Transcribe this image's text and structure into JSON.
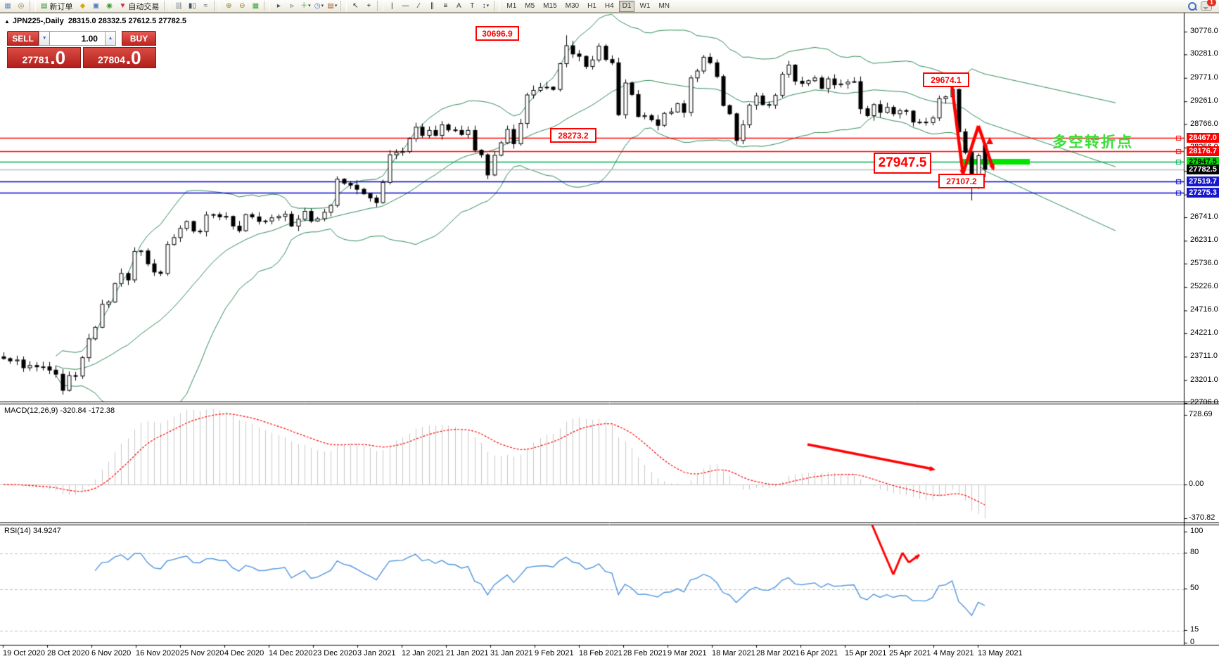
{
  "toolbar": {
    "items": [
      {
        "type": "icon",
        "name": "chart-window-icon",
        "glyph": "▦",
        "color": "#6b8fb5"
      },
      {
        "type": "icon",
        "name": "profile-search-icon",
        "glyph": "◎",
        "color": "#8a7a40"
      },
      {
        "type": "sep"
      },
      {
        "type": "button",
        "name": "new-order-button",
        "glyph": "▤",
        "color": "#3a8a3a",
        "label": "新订单"
      },
      {
        "type": "icon",
        "name": "style-brush-icon",
        "glyph": "◆",
        "color": "#dca900"
      },
      {
        "type": "icon",
        "name": "terminal-icon",
        "glyph": "▣",
        "color": "#5580c0"
      },
      {
        "type": "icon",
        "name": "news-signal-icon",
        "glyph": "◉",
        "color": "#30a030"
      },
      {
        "type": "button",
        "name": "autotrade-button",
        "glyph": "▼",
        "color": "#d03030",
        "label": "自动交易"
      },
      {
        "type": "sep"
      },
      {
        "type": "icon",
        "name": "bar-chart-icon",
        "glyph": "|||",
        "color": "#445566"
      },
      {
        "type": "icon",
        "name": "candle-chart-icon",
        "glyph": "▮▯",
        "color": "#445566"
      },
      {
        "type": "icon",
        "name": "line-chart-icon",
        "glyph": "≈",
        "color": "#445566"
      },
      {
        "type": "sep"
      },
      {
        "type": "icon",
        "name": "zoom-in-icon",
        "glyph": "⊕",
        "color": "#8a7a20"
      },
      {
        "type": "icon",
        "name": "zoom-out-icon",
        "glyph": "⊖",
        "color": "#8a7a20"
      },
      {
        "type": "icon",
        "name": "tile-windows-icon",
        "glyph": "▦",
        "color": "#3aa03a"
      },
      {
        "type": "sep"
      },
      {
        "type": "icon",
        "name": "auto-scroll-icon",
        "glyph": "▸",
        "color": "#445566"
      },
      {
        "type": "icon",
        "name": "chart-shift-icon",
        "glyph": "▹",
        "color": "#445566"
      },
      {
        "type": "button",
        "name": "indicators-button",
        "glyph": "＋",
        "color": "#2f9e2f",
        "caret": true
      },
      {
        "type": "button",
        "name": "periods-button",
        "glyph": "◷",
        "color": "#3b6fd4",
        "caret": true
      },
      {
        "type": "button",
        "name": "templates-button",
        "glyph": "▤",
        "color": "#b06030",
        "caret": true
      },
      {
        "type": "sep"
      },
      {
        "type": "icon",
        "name": "cursor-icon",
        "glyph": "↖",
        "color": "#222"
      },
      {
        "type": "icon",
        "name": "crosshair-icon",
        "glyph": "+",
        "color": "#222"
      },
      {
        "type": "sep"
      },
      {
        "type": "icon",
        "name": "vertical-line-icon",
        "glyph": "|",
        "color": "#222"
      },
      {
        "type": "icon",
        "name": "horizontal-line-icon",
        "glyph": "—",
        "color": "#222"
      },
      {
        "type": "icon",
        "name": "trendline-icon",
        "glyph": "∕",
        "color": "#222"
      },
      {
        "type": "icon",
        "name": "equidistant-channel-icon",
        "glyph": "∥",
        "color": "#222"
      },
      {
        "type": "icon",
        "name": "fibonacci-icon",
        "glyph": "≡",
        "color": "#222"
      },
      {
        "type": "icon",
        "name": "text-tool-icon",
        "glyph": "A",
        "color": "#444"
      },
      {
        "type": "icon",
        "name": "text-label-icon",
        "glyph": "T",
        "color": "#444"
      },
      {
        "type": "button",
        "name": "arrows-tool-button",
        "glyph": "↕",
        "color": "#445",
        "caret": true
      },
      {
        "type": "sep"
      }
    ],
    "timeframes": [
      "M1",
      "M5",
      "M15",
      "M30",
      "H1",
      "H4",
      "D1",
      "W1",
      "MN"
    ],
    "active_timeframe": "D1",
    "caret_glyph": "▾",
    "chat_badge": "1"
  },
  "title": {
    "collapse": "▲",
    "symbol": "JPN225-,Daily",
    "ohlc": "28315.0 28332.5 27612.5 27782.5"
  },
  "trade_panel": {
    "sell_label": "SELL",
    "buy_label": "BUY",
    "volume": "1.00",
    "spin_down": "▼",
    "spin_up": "▲",
    "sell_price": "27781",
    "sell_price_frac": ".0",
    "buy_price": "27804",
    "buy_price_frac": ".0"
  },
  "indicators": {
    "macd_label": "MACD(12,26,9) -320.84 -172.38",
    "rsi_label": "RSI(14) 34.9247"
  },
  "annotations": {
    "high_label": "30696.9",
    "swing_label": "29674.1",
    "support_label": "28273.2",
    "pivot_label": "27947.5",
    "low_label": "27107.2",
    "note_green": "多空转折点"
  },
  "axes": {
    "main_ticks": [
      30776.0,
      30281.0,
      29771.0,
      29261.0,
      28766.0,
      28256.0,
      27746.0,
      27236.0,
      26741.0,
      26231.0,
      25736.0,
      25226.0,
      24716.0,
      24221.0,
      23711.0,
      23201.0,
      22706.0
    ],
    "macd_ticks": [
      "728.69",
      "0.00",
      "-370.82"
    ],
    "rsi_ticks": [
      "100",
      "80",
      "50",
      "15",
      "0"
    ],
    "dates": [
      "19 Oct 2020",
      "28 Oct 2020",
      "6 Nov 2020",
      "16 Nov 2020",
      "25 Nov 2020",
      "4 Dec 2020",
      "14 Dec 2020",
      "23 Dec 2020",
      "3 Jan 2021",
      "12 Jan 2021",
      "21 Jan 2021",
      "31 Jan 2021",
      "9 Feb 2021",
      "18 Feb 2021",
      "28 Feb 2021",
      "9 Mar 2021",
      "18 Mar 2021",
      "28 Mar 2021",
      "6 Apr 2021",
      "15 Apr 2021",
      "25 Apr 2021",
      "4 May 2021",
      "13 May 2021"
    ]
  },
  "price_lines": [
    {
      "value": 28467.0,
      "label": "28467.0",
      "line": "#ff0000",
      "bg": "#ff0000",
      "fg": "#ffffff",
      "handle": true
    },
    {
      "value": 28176.7,
      "label": "28176.7",
      "line": "#ff0000",
      "bg": "#ff0000",
      "fg": "#ffffff",
      "handle": true
    },
    {
      "value": 27947.5,
      "label": "27947.5",
      "line": "#00b050",
      "bg": "#00df00",
      "fg": "#000000",
      "handle": true
    },
    {
      "value": 27782.5,
      "label": "27782.5",
      "line": "#bbbbbb",
      "bg": "#000000",
      "fg": "#ffffff",
      "handle": false
    },
    {
      "value": 27519.7,
      "label": "27519.7",
      "line": "#0000cc",
      "bg": "#1616cc",
      "fg": "#ffffff",
      "handle": true
    },
    {
      "value": 27275.3,
      "label": "27275.3",
      "line": "#0000cc",
      "bg": "#1616cc",
      "fg": "#ffffff",
      "handle": true
    }
  ],
  "chart_data": {
    "type": "candlestick",
    "symbol": "JPN225",
    "period": "Daily",
    "y_range": [
      22706,
      30776
    ],
    "macd_range": [
      -370.82,
      728.69
    ],
    "rsi_levels": [
      80,
      50,
      15
    ],
    "last_ohlc": {
      "open": 28315.0,
      "high": 28332.5,
      "low": 27612.5,
      "close": 27782.5
    },
    "key_points": {
      "high": 30696.9,
      "swing_high": 29674.1,
      "shelf": 28273.2,
      "pivot": 27947.5,
      "crash_low": 27107.2
    },
    "indicators": {
      "bollinger": {
        "period": 20,
        "deviation": 2
      },
      "macd": {
        "fast": 12,
        "slow": 26,
        "signal": 9,
        "current": -320.84,
        "current_signal": -172.38
      },
      "rsi": {
        "period": 14,
        "current": 34.9247
      }
    },
    "closes": [
      23670,
      23620,
      23640,
      23470,
      23520,
      23490,
      23490,
      23420,
      23330,
      22980,
      23300,
      23290,
      23690,
      24100,
      24350,
      24850,
      24900,
      25300,
      25520,
      25380,
      26000,
      26010,
      25730,
      25550,
      25520,
      26150,
      26300,
      26500,
      26650,
      26440,
      26430,
      26790,
      26800,
      26750,
      26760,
      26550,
      26450,
      26800,
      26750,
      26650,
      26660,
      26730,
      26760,
      26810,
      26550,
      26700,
      26870,
      26660,
      26710,
      26850,
      27000,
      27570,
      27480,
      27440,
      27350,
      27250,
      27160,
      27060,
      27500,
      28100,
      28150,
      28170,
      28450,
      28700,
      28520,
      28630,
      28520,
      28750,
      28640,
      28630,
      28540,
      28630,
      28200,
      28100,
      27660,
      28090,
      28360,
      28650,
      28340,
      28780,
      29400,
      29500,
      29560,
      29570,
      29520,
      30080,
      30470,
      30290,
      30240,
      30020,
      30160,
      30460,
      30170,
      30100,
      28970,
      29660,
      29410,
      28930,
      28950,
      28860,
      28740,
      29000,
      29030,
      29210,
      29020,
      29770,
      29920,
      30220,
      30100,
      29800,
      29170,
      28990,
      28410,
      28750,
      29180,
      29380,
      29190,
      29180,
      29390,
      29850,
      30050,
      29700,
      29650,
      29710,
      29770,
      29540,
      29750,
      29620,
      29640,
      29680,
      29690,
      29100,
      28950,
      29190,
      29020,
      29130,
      28990,
      29060,
      29050,
      28810,
      28810,
      28800,
      28900,
      29320,
      29360,
      29520,
      28600,
      28150,
      27450,
      28080,
      27782.5
    ],
    "overrides": {
      "86": {
        "high": 30696.9
      },
      "145": {
        "high": 29674.1
      },
      "148": {
        "low": 27107.2
      },
      "150": {
        "open": 28315.0,
        "high": 28332.5,
        "low": 27612.5,
        "close": 27782.5
      }
    },
    "colors": {
      "bollinger": "#2E8B57",
      "candle_up": "#ffffff",
      "candle_down": "#000000",
      "candle_line": "#000000",
      "macd_hist": "#c9c9c9",
      "macd_signal": "#ff0000",
      "rsi_line": "#4f94dd",
      "levels": "#c0c0c0",
      "annotation": "#ff0000",
      "highlight_green": "#00e400",
      "note_green": "#3ae03a"
    }
  }
}
